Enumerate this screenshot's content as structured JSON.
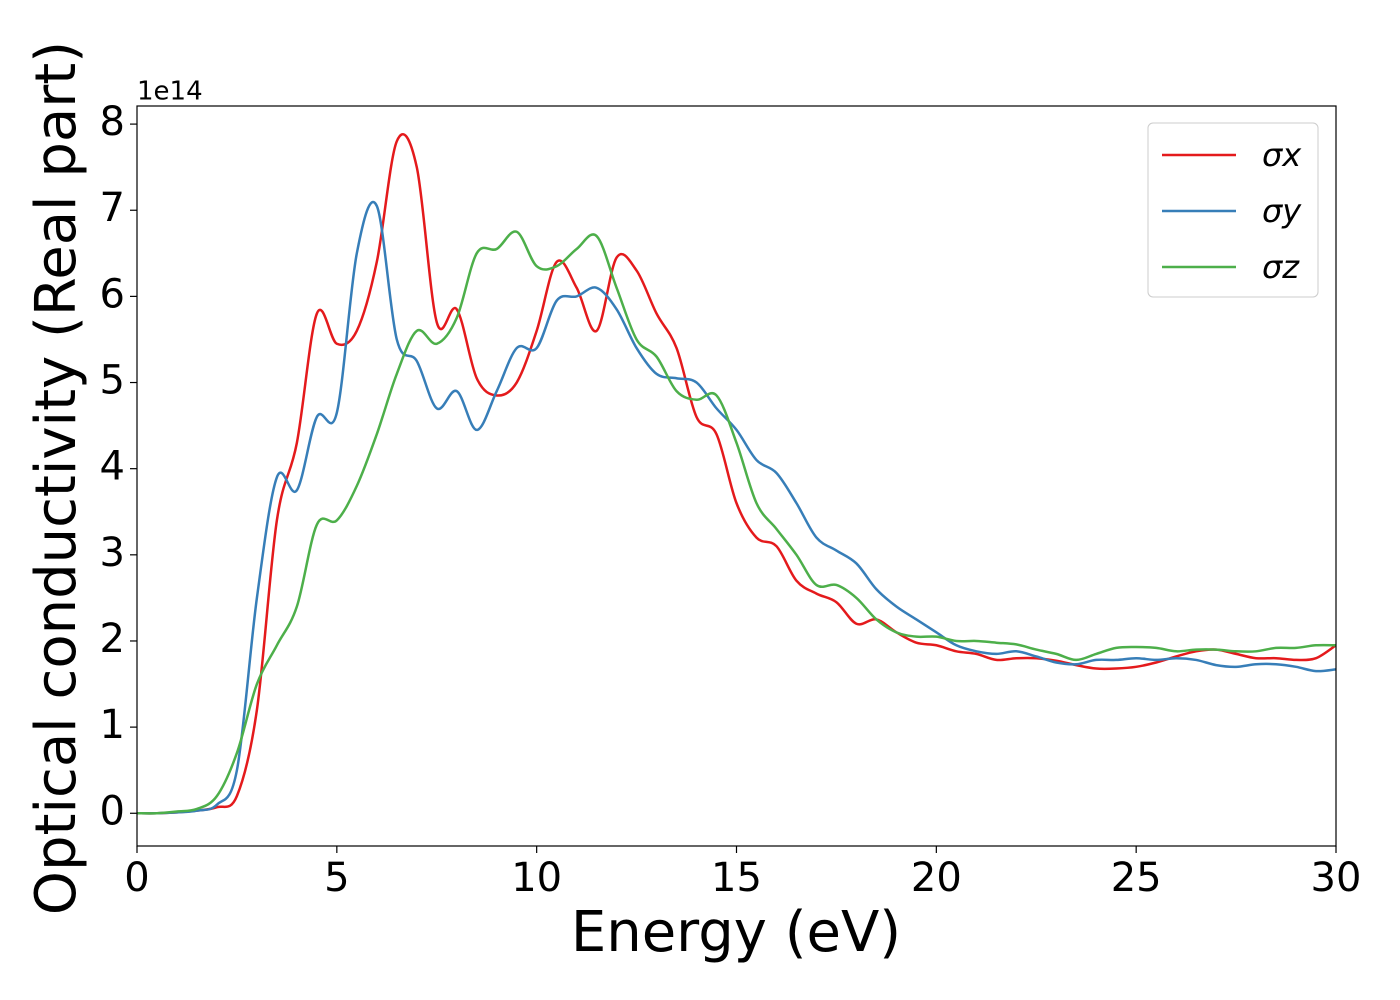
{
  "chart_data": {
    "type": "line",
    "xlabel": "Energy (eV)",
    "ylabel": "Optical conductivity (Real part)",
    "y_offset_label": "1e14",
    "x": [
      0,
      0.5,
      1,
      1.5,
      2,
      2.5,
      3,
      3.5,
      4,
      4.5,
      5,
      5.5,
      6,
      6.5,
      7,
      7.5,
      8,
      8.5,
      9,
      9.5,
      10,
      10.5,
      11,
      11.5,
      12,
      12.5,
      13,
      13.5,
      14,
      14.5,
      15,
      15.5,
      16,
      16.5,
      17,
      17.5,
      18,
      18.5,
      19,
      19.5,
      20,
      20.5,
      21,
      21.5,
      22,
      22.5,
      23,
      23.5,
      24,
      24.5,
      25,
      25.5,
      26,
      26.5,
      27,
      27.5,
      28,
      28.5,
      29,
      29.5,
      30
    ],
    "series": [
      {
        "name": "σx",
        "color": "#e41a1c",
        "values": [
          0,
          0,
          0.01,
          0.03,
          0.07,
          0.2,
          1.2,
          3.4,
          4.3,
          5.8,
          5.45,
          5.6,
          6.4,
          7.8,
          7.5,
          5.7,
          5.85,
          5.05,
          4.85,
          5.0,
          5.6,
          6.4,
          6.1,
          5.6,
          6.45,
          6.3,
          5.8,
          5.4,
          4.6,
          4.4,
          3.6,
          3.2,
          3.1,
          2.7,
          2.55,
          2.45,
          2.2,
          2.25,
          2.1,
          1.98,
          1.95,
          1.88,
          1.85,
          1.78,
          1.8,
          1.8,
          1.77,
          1.72,
          1.68,
          1.68,
          1.7,
          1.75,
          1.82,
          1.88,
          1.9,
          1.85,
          1.8,
          1.8,
          1.78,
          1.8,
          1.95
        ]
      },
      {
        "name": "σy",
        "color": "#377eb8",
        "values": [
          0,
          0,
          0.01,
          0.03,
          0.1,
          0.5,
          2.5,
          3.9,
          3.75,
          4.6,
          4.65,
          6.5,
          7.05,
          5.5,
          5.25,
          4.7,
          4.9,
          4.45,
          4.9,
          5.4,
          5.4,
          5.95,
          6.0,
          6.1,
          5.85,
          5.4,
          5.1,
          5.05,
          5.0,
          4.7,
          4.45,
          4.1,
          3.95,
          3.6,
          3.2,
          3.05,
          2.9,
          2.6,
          2.4,
          2.25,
          2.1,
          1.95,
          1.88,
          1.85,
          1.88,
          1.82,
          1.75,
          1.73,
          1.78,
          1.78,
          1.8,
          1.78,
          1.8,
          1.78,
          1.72,
          1.7,
          1.73,
          1.73,
          1.7,
          1.65,
          1.67
        ]
      },
      {
        "name": "σz",
        "color": "#4daf4a",
        "values": [
          0,
          0,
          0.02,
          0.05,
          0.2,
          0.7,
          1.5,
          1.95,
          2.4,
          3.35,
          3.4,
          3.8,
          4.4,
          5.1,
          5.6,
          5.45,
          5.75,
          6.5,
          6.55,
          6.75,
          6.35,
          6.35,
          6.55,
          6.7,
          6.1,
          5.5,
          5.3,
          4.9,
          4.8,
          4.85,
          4.3,
          3.6,
          3.3,
          3.0,
          2.65,
          2.65,
          2.5,
          2.25,
          2.1,
          2.05,
          2.05,
          2.0,
          2.0,
          1.98,
          1.96,
          1.9,
          1.85,
          1.78,
          1.85,
          1.92,
          1.93,
          1.92,
          1.88,
          1.9,
          1.9,
          1.88,
          1.88,
          1.92,
          1.92,
          1.95,
          1.95
        ]
      }
    ],
    "xlim": [
      0,
      30
    ],
    "xticks": [
      0,
      5,
      10,
      15,
      20,
      25,
      30
    ],
    "ylim": [
      -0.38,
      8.21
    ],
    "yticks": [
      0,
      1,
      2,
      3,
      4,
      5,
      6,
      7,
      8
    ],
    "legend": "upper right"
  }
}
